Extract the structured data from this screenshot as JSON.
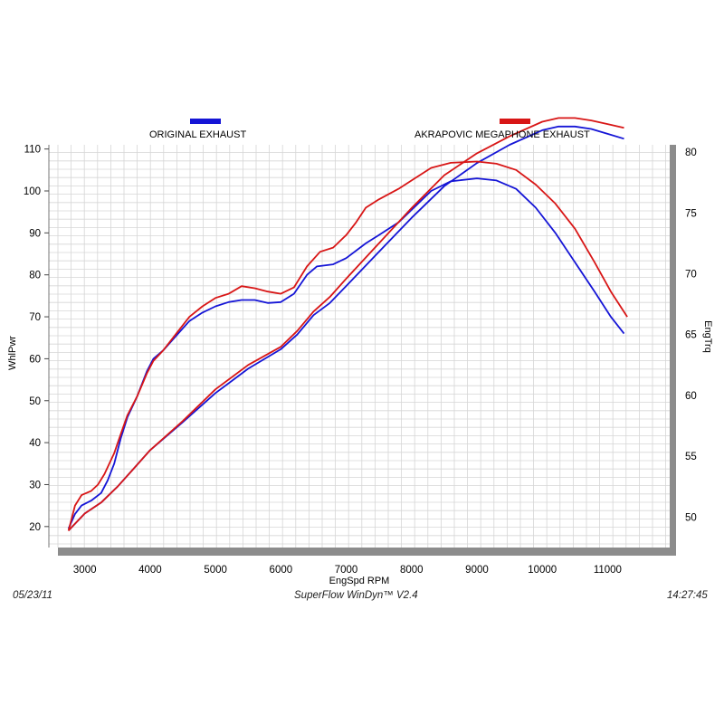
{
  "footer": {
    "date": "05/23/11",
    "software": "SuperFlow WinDyn™  V2.4",
    "time": "14:27:45"
  },
  "chart_data": {
    "type": "line",
    "xlabel": "EngSpd  RPM",
    "ylabel_left": "WhlPwr",
    "ylabel_right": "EngTrq",
    "xlim": [
      2450,
      11950
    ],
    "ylim_left": [
      15,
      111
    ],
    "ylim_right": [
      47.5,
      80.6
    ],
    "x_ticks": [
      3000,
      4000,
      5000,
      6000,
      7000,
      8000,
      9000,
      10000,
      11000
    ],
    "y_ticks_left": [
      20,
      30,
      40,
      50,
      60,
      70,
      80,
      90,
      100,
      110
    ],
    "y_ticks_right": [
      50,
      55,
      60,
      65,
      70,
      75,
      80
    ],
    "grid": true,
    "legend_position": "top",
    "series": [
      {
        "name": "ORIGINAL EXHAUST",
        "color": "#1515d6",
        "axis": "left",
        "points": [
          [
            2750,
            19.5
          ],
          [
            2850,
            23
          ],
          [
            2950,
            25
          ],
          [
            3100,
            26.2
          ],
          [
            3250,
            28
          ],
          [
            3350,
            31
          ],
          [
            3450,
            35
          ],
          [
            3550,
            41
          ],
          [
            3650,
            46
          ],
          [
            3800,
            51
          ],
          [
            3950,
            57
          ],
          [
            4050,
            60
          ],
          [
            4200,
            62
          ],
          [
            4400,
            65.5
          ],
          [
            4600,
            69
          ],
          [
            4800,
            71
          ],
          [
            5000,
            72.5
          ],
          [
            5200,
            73.5
          ],
          [
            5400,
            74
          ],
          [
            5600,
            74
          ],
          [
            5800,
            73.3
          ],
          [
            6000,
            73.5
          ],
          [
            6200,
            75.5
          ],
          [
            6400,
            80
          ],
          [
            6550,
            82
          ],
          [
            6800,
            82.5
          ],
          [
            7000,
            84
          ],
          [
            7300,
            87.5
          ],
          [
            7500,
            89.5
          ],
          [
            7800,
            92.5
          ],
          [
            8000,
            95.5
          ],
          [
            8300,
            100
          ],
          [
            8600,
            102.3
          ],
          [
            9000,
            103
          ],
          [
            9300,
            102.5
          ],
          [
            9600,
            100.5
          ],
          [
            9900,
            96
          ],
          [
            10200,
            90
          ],
          [
            10500,
            83
          ],
          [
            10800,
            76
          ],
          [
            11050,
            70
          ],
          [
            11250,
            66
          ]
        ]
      },
      {
        "name": "ORIGINAL EXHAUST",
        "color": "#1515d6",
        "axis": "right",
        "points": [
          [
            2750,
            48.9
          ],
          [
            3000,
            50.3
          ],
          [
            3250,
            51.2
          ],
          [
            3500,
            52.5
          ],
          [
            3750,
            54
          ],
          [
            4000,
            55.5
          ],
          [
            4500,
            57.8
          ],
          [
            5000,
            60.2
          ],
          [
            5500,
            62.2
          ],
          [
            6000,
            63.8
          ],
          [
            6250,
            65
          ],
          [
            6500,
            66.6
          ],
          [
            6750,
            67.6
          ],
          [
            7000,
            69
          ],
          [
            7500,
            71.8
          ],
          [
            8000,
            74.6
          ],
          [
            8500,
            77.2
          ],
          [
            9000,
            79.1
          ],
          [
            9500,
            80.6
          ],
          [
            10000,
            81.8
          ],
          [
            10250,
            82.1
          ],
          [
            10500,
            82.1
          ],
          [
            10750,
            81.9
          ],
          [
            11000,
            81.5
          ],
          [
            11250,
            81.1
          ]
        ]
      },
      {
        "name": "AKRAPOVIC MEGAPHONE EXHAUST",
        "color": "#d81616",
        "axis": "left",
        "points": [
          [
            2750,
            19
          ],
          [
            2850,
            25
          ],
          [
            2950,
            27.5
          ],
          [
            3100,
            28.5
          ],
          [
            3200,
            30
          ],
          [
            3300,
            32.5
          ],
          [
            3450,
            37.5
          ],
          [
            3550,
            42
          ],
          [
            3650,
            46.5
          ],
          [
            3800,
            51
          ],
          [
            3950,
            56.5
          ],
          [
            4050,
            59.5
          ],
          [
            4200,
            62
          ],
          [
            4400,
            66
          ],
          [
            4600,
            70
          ],
          [
            4800,
            72.5
          ],
          [
            5000,
            74.5
          ],
          [
            5200,
            75.5
          ],
          [
            5400,
            77.3
          ],
          [
            5600,
            76.8
          ],
          [
            5800,
            76
          ],
          [
            6000,
            75.5
          ],
          [
            6200,
            77
          ],
          [
            6400,
            82
          ],
          [
            6600,
            85.5
          ],
          [
            6800,
            86.5
          ],
          [
            7000,
            89.5
          ],
          [
            7150,
            92.5
          ],
          [
            7300,
            96
          ],
          [
            7500,
            98
          ],
          [
            7800,
            100.5
          ],
          [
            8000,
            102.5
          ],
          [
            8300,
            105.5
          ],
          [
            8600,
            106.7
          ],
          [
            9000,
            107
          ],
          [
            9300,
            106.5
          ],
          [
            9600,
            105
          ],
          [
            9900,
            101.5
          ],
          [
            10200,
            97
          ],
          [
            10500,
            91
          ],
          [
            10800,
            83
          ],
          [
            11050,
            76
          ],
          [
            11300,
            70
          ]
        ]
      },
      {
        "name": "AKRAPOVIC MEGAPHONE EXHAUST",
        "color": "#d81616",
        "axis": "right",
        "points": [
          [
            2750,
            48.9
          ],
          [
            3000,
            50.3
          ],
          [
            3250,
            51.2
          ],
          [
            3500,
            52.5
          ],
          [
            3750,
            54
          ],
          [
            4000,
            55.5
          ],
          [
            4500,
            57.9
          ],
          [
            5000,
            60.5
          ],
          [
            5500,
            62.5
          ],
          [
            6000,
            64
          ],
          [
            6250,
            65.3
          ],
          [
            6500,
            66.9
          ],
          [
            6750,
            68.1
          ],
          [
            7000,
            69.6
          ],
          [
            7500,
            72.5
          ],
          [
            8000,
            75.4
          ],
          [
            8500,
            78.1
          ],
          [
            9000,
            79.9
          ],
          [
            9500,
            81.3
          ],
          [
            10000,
            82.5
          ],
          [
            10250,
            82.8
          ],
          [
            10500,
            82.8
          ],
          [
            10750,
            82.6
          ],
          [
            11000,
            82.3
          ],
          [
            11250,
            82
          ]
        ]
      }
    ]
  }
}
